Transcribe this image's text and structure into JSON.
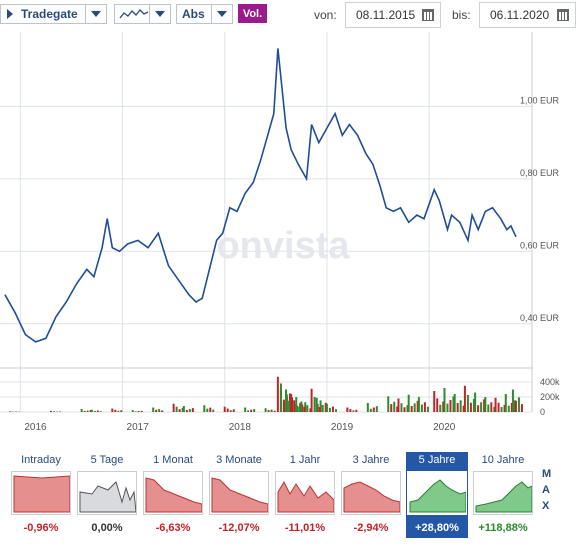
{
  "toolbar": {
    "exchange": "Tradegate",
    "scale": "Abs",
    "volume": "Vol.",
    "from_label": "von:",
    "from_date": "08.11.2015",
    "to_label": "bis:",
    "to_date": "06.11.2020"
  },
  "watermark": "onvista",
  "chart_data": {
    "type": "line",
    "x_start": 2015.85,
    "x_end": 2020.85,
    "x_ticks": [
      2016,
      2017,
      2018,
      2019,
      2020
    ],
    "ylim": [
      0.3,
      1.15
    ],
    "y_ticks": [
      0.4,
      0.6,
      0.8,
      1.0
    ],
    "y_tick_labels": [
      "0,40 EUR",
      "0,60 EUR",
      "0,80 EUR",
      "1,00 EUR"
    ],
    "series": [
      {
        "values": [
          [
            2015.85,
            0.48
          ],
          [
            2015.95,
            0.43
          ],
          [
            2016.05,
            0.37
          ],
          [
            2016.15,
            0.35
          ],
          [
            2016.25,
            0.36
          ],
          [
            2016.35,
            0.42
          ],
          [
            2016.45,
            0.46
          ],
          [
            2016.55,
            0.51
          ],
          [
            2016.65,
            0.55
          ],
          [
            2016.72,
            0.53
          ],
          [
            2016.8,
            0.61
          ],
          [
            2016.85,
            0.69
          ],
          [
            2016.9,
            0.61
          ],
          [
            2016.97,
            0.6
          ],
          [
            2017.05,
            0.62
          ],
          [
            2017.15,
            0.63
          ],
          [
            2017.25,
            0.61
          ],
          [
            2017.35,
            0.65
          ],
          [
            2017.45,
            0.56
          ],
          [
            2017.55,
            0.52
          ],
          [
            2017.65,
            0.48
          ],
          [
            2017.72,
            0.46
          ],
          [
            2017.78,
            0.47
          ],
          [
            2017.85,
            0.55
          ],
          [
            2017.92,
            0.63
          ],
          [
            2017.98,
            0.65
          ],
          [
            2018.05,
            0.72
          ],
          [
            2018.12,
            0.71
          ],
          [
            2018.2,
            0.76
          ],
          [
            2018.28,
            0.79
          ],
          [
            2018.35,
            0.85
          ],
          [
            2018.42,
            0.92
          ],
          [
            2018.48,
            0.98
          ],
          [
            2018.52,
            1.16
          ],
          [
            2018.56,
            1.05
          ],
          [
            2018.6,
            0.94
          ],
          [
            2018.65,
            0.88
          ],
          [
            2018.72,
            0.84
          ],
          [
            2018.8,
            0.8
          ],
          [
            2018.85,
            0.95
          ],
          [
            2018.92,
            0.9
          ],
          [
            2019.0,
            0.94
          ],
          [
            2019.08,
            0.98
          ],
          [
            2019.15,
            0.92
          ],
          [
            2019.22,
            0.95
          ],
          [
            2019.3,
            0.92
          ],
          [
            2019.38,
            0.87
          ],
          [
            2019.45,
            0.84
          ],
          [
            2019.52,
            0.78
          ],
          [
            2019.58,
            0.72
          ],
          [
            2019.65,
            0.71
          ],
          [
            2019.72,
            0.72
          ],
          [
            2019.8,
            0.68
          ],
          [
            2019.88,
            0.7
          ],
          [
            2019.95,
            0.69
          ],
          [
            2020.05,
            0.77
          ],
          [
            2020.1,
            0.74
          ],
          [
            2020.18,
            0.66
          ],
          [
            2020.22,
            0.7
          ],
          [
            2020.3,
            0.68
          ],
          [
            2020.38,
            0.63
          ],
          [
            2020.42,
            0.7
          ],
          [
            2020.48,
            0.66
          ],
          [
            2020.55,
            0.71
          ],
          [
            2020.62,
            0.72
          ],
          [
            2020.7,
            0.69
          ],
          [
            2020.76,
            0.66
          ],
          [
            2020.8,
            0.67
          ],
          [
            2020.85,
            0.64
          ]
        ]
      }
    ],
    "volume": {
      "y_ticks": [
        0,
        200000,
        400000
      ],
      "y_tick_labels": [
        "0",
        "200k",
        "400k"
      ],
      "ymax": 480000,
      "bars": [
        [
          2015.9,
          10000
        ],
        [
          2016.3,
          15000
        ],
        [
          2016.6,
          40000
        ],
        [
          2016.7,
          30000
        ],
        [
          2016.9,
          45000
        ],
        [
          2017.1,
          25000
        ],
        [
          2017.3,
          60000
        ],
        [
          2017.5,
          110000
        ],
        [
          2017.6,
          80000
        ],
        [
          2017.8,
          90000
        ],
        [
          2018.0,
          70000
        ],
        [
          2018.2,
          60000
        ],
        [
          2018.4,
          50000
        ],
        [
          2018.52,
          470000
        ],
        [
          2018.55,
          380000
        ],
        [
          2018.6,
          300000
        ],
        [
          2018.65,
          240000
        ],
        [
          2018.7,
          200000
        ],
        [
          2018.75,
          140000
        ],
        [
          2018.85,
          310000
        ],
        [
          2018.9,
          190000
        ],
        [
          2019.0,
          110000
        ],
        [
          2019.2,
          60000
        ],
        [
          2019.4,
          120000
        ],
        [
          2019.6,
          210000
        ],
        [
          2019.7,
          180000
        ],
        [
          2019.8,
          230000
        ],
        [
          2019.9,
          200000
        ],
        [
          2020.05,
          280000
        ],
        [
          2020.15,
          320000
        ],
        [
          2020.25,
          240000
        ],
        [
          2020.35,
          350000
        ],
        [
          2020.45,
          260000
        ],
        [
          2020.55,
          200000
        ],
        [
          2020.65,
          190000
        ],
        [
          2020.75,
          240000
        ],
        [
          2020.82,
          300000
        ]
      ]
    }
  },
  "periods": [
    {
      "label": "Intraday",
      "change": "-0,96%",
      "color": "#c0232a",
      "shape": "intraday"
    },
    {
      "label": "5 Tage",
      "change": "0,00%",
      "color": "#333333",
      "shape": "week"
    },
    {
      "label": "1 Monat",
      "change": "-6,63%",
      "color": "#c0232a",
      "shape": "down"
    },
    {
      "label": "3 Monate",
      "change": "-12,07%",
      "color": "#c0232a",
      "shape": "down"
    },
    {
      "label": "1 Jahr",
      "change": "-11,01%",
      "color": "#c0232a",
      "shape": "wave"
    },
    {
      "label": "3 Jahre",
      "change": "-2,94%",
      "color": "#c0232a",
      "shape": "hump"
    },
    {
      "label": "5 Jahre",
      "change": "+28,80%",
      "color": "#ffffff",
      "shape": "up",
      "active": true
    },
    {
      "label": "10 Jahre",
      "change": "+118,88%",
      "color": "#2a8a2a",
      "shape": "up10"
    }
  ],
  "side_letters": [
    "M",
    "A",
    "X"
  ],
  "colors": {
    "line": "#1f4e96",
    "grid": "#dde2ea",
    "vol_up": "#2e8b2e",
    "vol_down": "#c0232a",
    "accent": "#9c1a8c",
    "active_tab": "#2557a7"
  }
}
